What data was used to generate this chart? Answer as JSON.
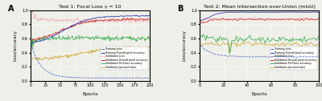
{
  "plot1": {
    "title": "Test 1: Focal Loss γ = 10",
    "xlabel": "Epochs",
    "ylabel": "Loss/accuracy",
    "xlim": [
      0,
      200
    ],
    "ylim": [
      0.0,
      1.0
    ],
    "xticks": [
      0,
      25,
      50,
      75,
      100,
      125,
      150,
      175,
      200
    ]
  },
  "plot2": {
    "title": "Test 2: Mean Intersection-over-Union (mIoU)",
    "xlabel": "Epochs",
    "ylabel": "Loss/accuracy",
    "xlim": [
      0,
      100
    ],
    "ylim": [
      0.0,
      1.0
    ],
    "xticks": [
      0,
      20,
      40,
      60,
      80,
      100
    ]
  },
  "legend_labels": [
    "Training Loss",
    "Training Overall pixel accuracy",
    "Validation Loss",
    "Validation Overall pixel accuracy",
    "Validation PerClass accuracy",
    "Validation Jaccard index"
  ],
  "line_colors": [
    "#4466cc",
    "#2233aa",
    "#ee4444",
    "#cc2222",
    "#33aa44",
    "#ccaa33"
  ],
  "background_color": "#efefea",
  "panel_labels": [
    "A",
    "B"
  ]
}
